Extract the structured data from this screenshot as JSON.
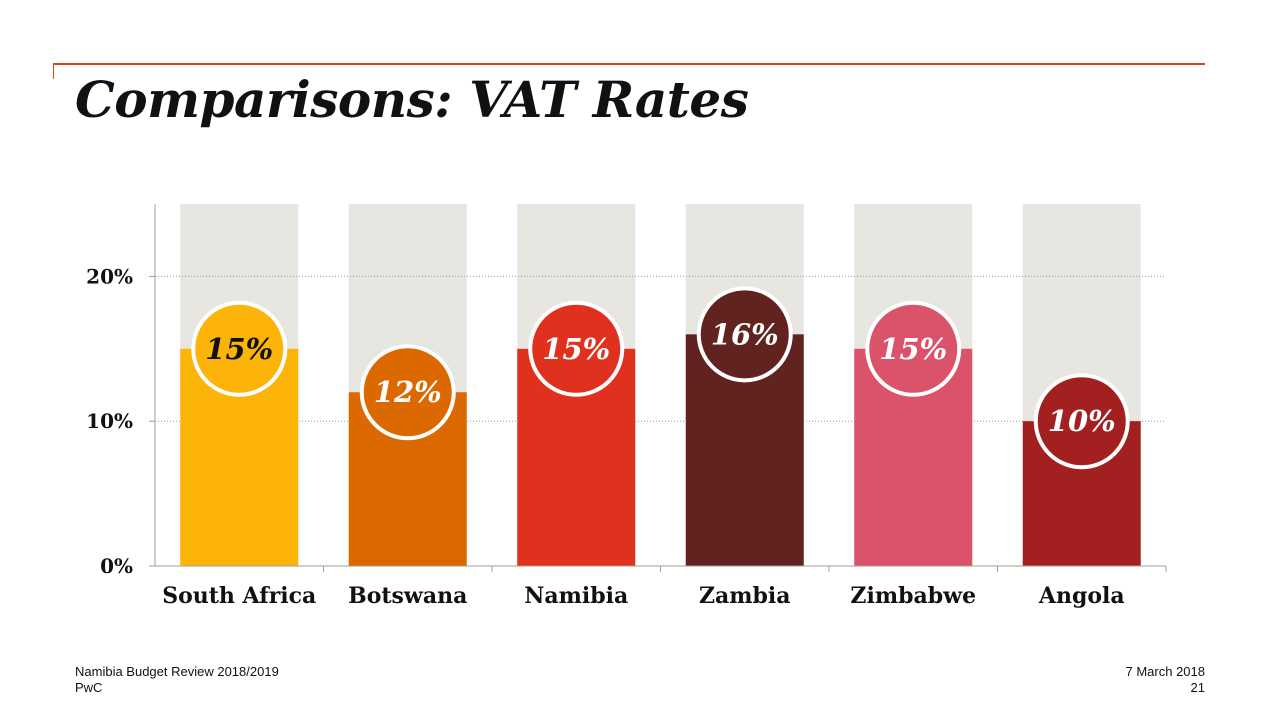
{
  "slide": {
    "title": "Comparisons: VAT Rates",
    "footer_left_line1": "Namibia Budget Review 2018/2019",
    "footer_left_line2": "PwC",
    "footer_right_line1": "7 March 2018",
    "footer_right_line2": "21"
  },
  "colors": {
    "accent_rule": "#d04a1e",
    "track": "#e8e6e1",
    "axis": "#a89c8a",
    "grid": "#9a9a9a",
    "text": "#111111"
  },
  "chart_data": {
    "type": "bar",
    "title": "",
    "xlabel": "",
    "ylabel": "",
    "ylim": [
      0,
      25
    ],
    "yticks": [
      0,
      10,
      20
    ],
    "ytick_labels": [
      "0%",
      "10%",
      "20%"
    ],
    "grid": true,
    "categories": [
      "South Africa",
      "Botswana",
      "Namibia",
      "Zambia",
      "Zimbabwe",
      "Angola"
    ],
    "values": [
      15,
      12,
      15,
      16,
      15,
      10
    ],
    "data_labels": [
      "15%",
      "12%",
      "15%",
      "16%",
      "15%",
      "10%"
    ],
    "bar_colors": [
      "#fdb408",
      "#dc6900",
      "#e0301e",
      "#602320",
      "#db536a",
      "#a32020"
    ],
    "label_colors": [
      "#111111",
      "#ffffff",
      "#ffffff",
      "#ffffff",
      "#ffffff",
      "#ffffff"
    ]
  }
}
